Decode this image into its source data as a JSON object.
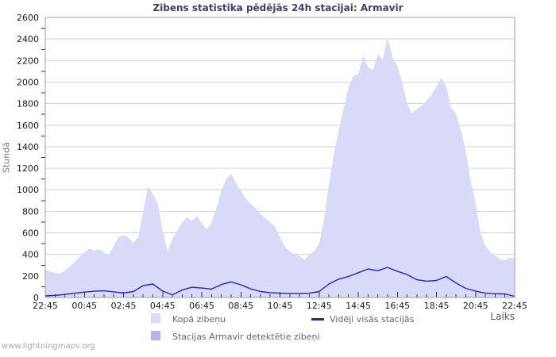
{
  "watermark": "www.lightningmaps.org",
  "chart_data": {
    "type": "area",
    "title": "Zibens statistika pēdējās 24h stacijai: Armavir",
    "xlabel": "Laiks",
    "ylabel": "Stundā",
    "ylim": [
      0,
      2600
    ],
    "y_tick_step": 200,
    "y_minor_step": 100,
    "grid": "horizontal-only",
    "legend_position": "bottom",
    "x_span_hours": 24,
    "x_minor_tick_minutes": 30,
    "x_major_tick_minutes": 120,
    "y_tick_labels": [
      "0",
      "200",
      "400",
      "600",
      "800",
      "1000",
      "1200",
      "1400",
      "1600",
      "1800",
      "2000",
      "2200",
      "2400",
      "2600"
    ],
    "x_tick_labels": [
      "22:45",
      "00:45",
      "02:45",
      "04:45",
      "06:45",
      "08:45",
      "10:45",
      "12:45",
      "14:45",
      "16:45",
      "18:45",
      "20:45",
      "22:45"
    ],
    "colors": {
      "background": "#ffffff",
      "grid": "#d2d2d2",
      "border": "#9f9f9f",
      "tick": "#333333",
      "tick_text": "#1a1a1a",
      "title": "#3e3e6b",
      "axis_label": "#7a7a7a",
      "legend_text": "#666666",
      "watermark": "#aaaaaa",
      "total_area": "#d9d9f8",
      "station_area": "#b3b3ee",
      "average_line": "#2121cc"
    },
    "series": [
      {
        "name": "Kopā zibeņu",
        "type": "area",
        "color": "#d9d9f8",
        "points_interval_minutes": 15,
        "values": [
          255,
          240,
          230,
          225,
          250,
          290,
          330,
          375,
          420,
          455,
          435,
          450,
          420,
          390,
          480,
          560,
          580,
          555,
          505,
          560,
          790,
          1030,
          960,
          870,
          620,
          430,
          545,
          620,
          700,
          745,
          710,
          755,
          690,
          630,
          700,
          830,
          990,
          1100,
          1150,
          1060,
          990,
          920,
          870,
          830,
          780,
          735,
          700,
          660,
          560,
          470,
          430,
          400,
          390,
          350,
          400,
          430,
          500,
          720,
          1050,
          1320,
          1550,
          1750,
          1950,
          2060,
          2070,
          2250,
          2140,
          2110,
          2260,
          2210,
          2420,
          2230,
          2150,
          2000,
          1800,
          1710,
          1750,
          1780,
          1830,
          1880,
          1960,
          2040,
          1960,
          1760,
          1710,
          1550,
          1360,
          1080,
          880,
          600,
          480,
          420,
          390,
          355,
          345,
          370,
          365
        ]
      },
      {
        "name": "Stacijas Armavir detektētie zibeņi",
        "type": "area",
        "color": "#b3b3ee",
        "points_interval_minutes": 1440,
        "values": [
          0,
          0
        ]
      },
      {
        "name": "Vidēji visās stacijās",
        "type": "line",
        "color": "#2121cc",
        "points_interval_minutes": 30,
        "values": [
          15,
          20,
          28,
          40,
          50,
          58,
          62,
          52,
          42,
          55,
          110,
          125,
          60,
          25,
          70,
          95,
          88,
          78,
          120,
          145,
          118,
          80,
          55,
          45,
          40,
          38,
          38,
          40,
          55,
          125,
          170,
          195,
          230,
          265,
          248,
          280,
          243,
          213,
          165,
          152,
          158,
          195,
          135,
          85,
          60,
          40,
          35,
          33,
          10
        ]
      }
    ]
  }
}
